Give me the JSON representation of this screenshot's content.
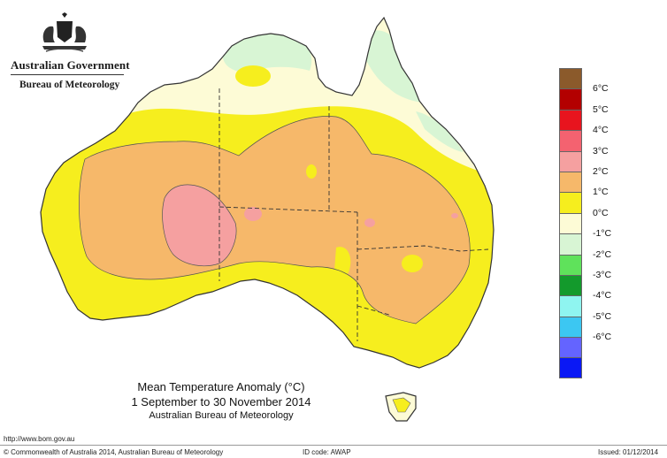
{
  "header": {
    "government": "Australian Government",
    "bureau": "Bureau of Meteorology"
  },
  "map": {
    "title": "Mean Temperature Anomaly (°C)",
    "period": "1 September to 30 November 2014",
    "source": "Australian Bureau of Meteorology"
  },
  "legend": {
    "items": [
      {
        "label": "",
        "color": "#8b5a2b"
      },
      {
        "label": "6°C",
        "color": "#b30000"
      },
      {
        "label": "5°C",
        "color": "#e8141e"
      },
      {
        "label": "4°C",
        "color": "#f46270"
      },
      {
        "label": "3°C",
        "color": "#f5a0a0"
      },
      {
        "label": "2°C",
        "color": "#f6b86a"
      },
      {
        "label": "1°C",
        "color": "#f6ee1e"
      },
      {
        "label": "0°C",
        "color": "#fdfbd6"
      },
      {
        "label": "-1°C",
        "color": "#d8f5d4"
      },
      {
        "label": "-2°C",
        "color": "#5fe25b"
      },
      {
        "label": "-3°C",
        "color": "#139a2c"
      },
      {
        "label": "-4°C",
        "color": "#8ff5f0"
      },
      {
        "label": "-5°C",
        "color": "#3cc7f2"
      },
      {
        "label": "-6°C",
        "color": "#6464ff"
      },
      {
        "label": "",
        "color": "#0a18f5"
      }
    ]
  },
  "footer": {
    "url": "http://www.bom.gov.au",
    "copyright": "© Commonwealth of Australia 2014, Australian Bureau of Meteorology",
    "id_code": "ID code: AWAP",
    "issued": "Issued: 01/12/2014"
  }
}
